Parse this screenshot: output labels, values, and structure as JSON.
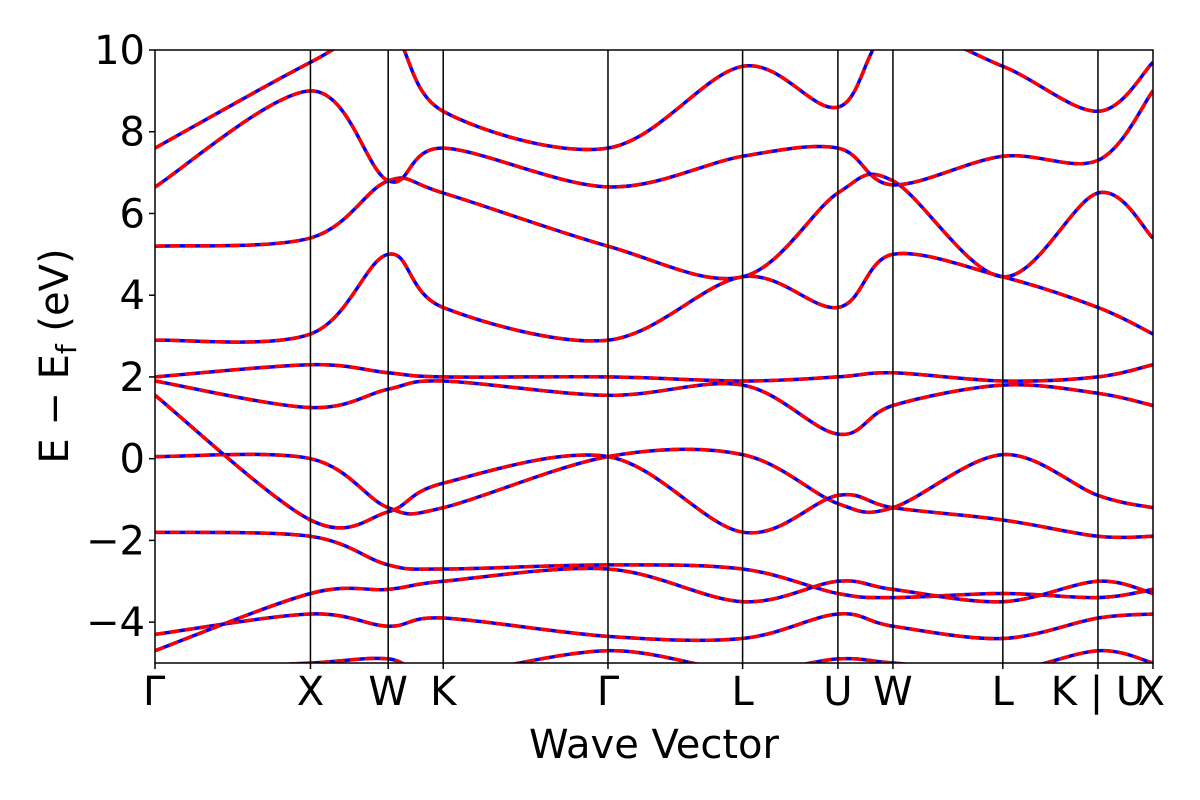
{
  "chart_data": {
    "type": "line",
    "title": "",
    "xlabel": "Wave Vector",
    "ylabel": "E − E",
    "ylabel_sub": "f",
    "ylabel_unit": " (eV)",
    "ylim": [
      -5,
      10
    ],
    "yticks": [
      {
        "value": -4,
        "label": "−4"
      },
      {
        "value": -2,
        "label": "−2"
      },
      {
        "value": 0,
        "label": "0"
      },
      {
        "value": 2,
        "label": "2"
      },
      {
        "value": 4,
        "label": "4"
      },
      {
        "value": 6,
        "label": "6"
      },
      {
        "value": 8,
        "label": "8"
      },
      {
        "value": 10,
        "label": "10"
      }
    ],
    "high_symmetry_points": [
      {
        "label": "Γ",
        "k": 0.0
      },
      {
        "label": "X",
        "k": 1.0
      },
      {
        "label": "W",
        "k": 1.5
      },
      {
        "label": "K",
        "k": 1.854
      },
      {
        "label": "Γ",
        "k": 2.914
      },
      {
        "label": "L",
        "k": 3.78
      },
      {
        "label": "U",
        "k": 4.393
      },
      {
        "label": "W",
        "k": 4.747
      },
      {
        "label": "L",
        "k": 5.454
      },
      {
        "label": "K | U",
        "k": 6.066
      },
      {
        "label": "X",
        "k": 6.42
      }
    ],
    "colors": {
      "series_a": "#ff0000",
      "series_b": "#0000ff",
      "vlines": "#000000"
    },
    "series": [
      {
        "values": [
          -1.8,
          -1.9,
          -2.6,
          -2.7,
          -2.6,
          -2.7,
          -3.3,
          -3.4,
          -3.3,
          -3.4,
          -3.2
        ]
      },
      {
        "values": [
          0.05,
          0.0,
          -1.2,
          -1.2,
          0.05,
          0.1,
          -1.1,
          -1.2,
          0.1,
          -0.9,
          -1.2
        ]
      },
      {
        "values": [
          1.55,
          -1.5,
          -1.3,
          -0.6,
          0.05,
          -1.8,
          -0.9,
          -1.2,
          -1.5,
          -1.9,
          -1.9
        ]
      },
      {
        "values": [
          2.0,
          2.3,
          2.1,
          2.0,
          2.0,
          1.9,
          2.0,
          2.1,
          1.9,
          2.0,
          2.3
        ]
      },
      {
        "values": [
          1.9,
          1.25,
          1.7,
          1.9,
          1.55,
          1.8,
          0.6,
          1.3,
          1.8,
          1.6,
          1.3
        ]
      },
      {
        "values": [
          2.9,
          3.05,
          5.0,
          3.7,
          2.9,
          4.45,
          3.7,
          5.0,
          4.45,
          3.7,
          3.05
        ]
      },
      {
        "values": [
          5.2,
          5.4,
          6.8,
          6.5,
          5.2,
          4.45,
          6.5,
          6.8,
          4.45,
          6.5,
          5.4
        ]
      },
      {
        "values": [
          6.65,
          9.0,
          6.8,
          7.6,
          6.65,
          7.4,
          7.6,
          6.7,
          7.4,
          7.3,
          9.0
        ]
      },
      {
        "values": [
          7.6,
          9.7,
          10.5,
          8.5,
          7.6,
          9.6,
          8.6,
          10.5,
          9.6,
          8.5,
          9.7
        ]
      },
      {
        "values": [
          -4.3,
          -3.8,
          -4.1,
          -3.9,
          -4.35,
          -4.4,
          -3.8,
          -4.1,
          -4.4,
          -3.9,
          -3.8
        ]
      },
      {
        "values": [
          -4.7,
          -3.3,
          -3.2,
          -3.0,
          -2.7,
          -3.5,
          -3.0,
          -3.2,
          -3.5,
          -3.0,
          -3.3
        ]
      },
      {
        "values": [
          -5.2,
          -5.0,
          -4.9,
          -5.3,
          -4.7,
          -5.2,
          -4.9,
          -5.0,
          -5.2,
          -4.7,
          -5.0
        ]
      }
    ]
  }
}
